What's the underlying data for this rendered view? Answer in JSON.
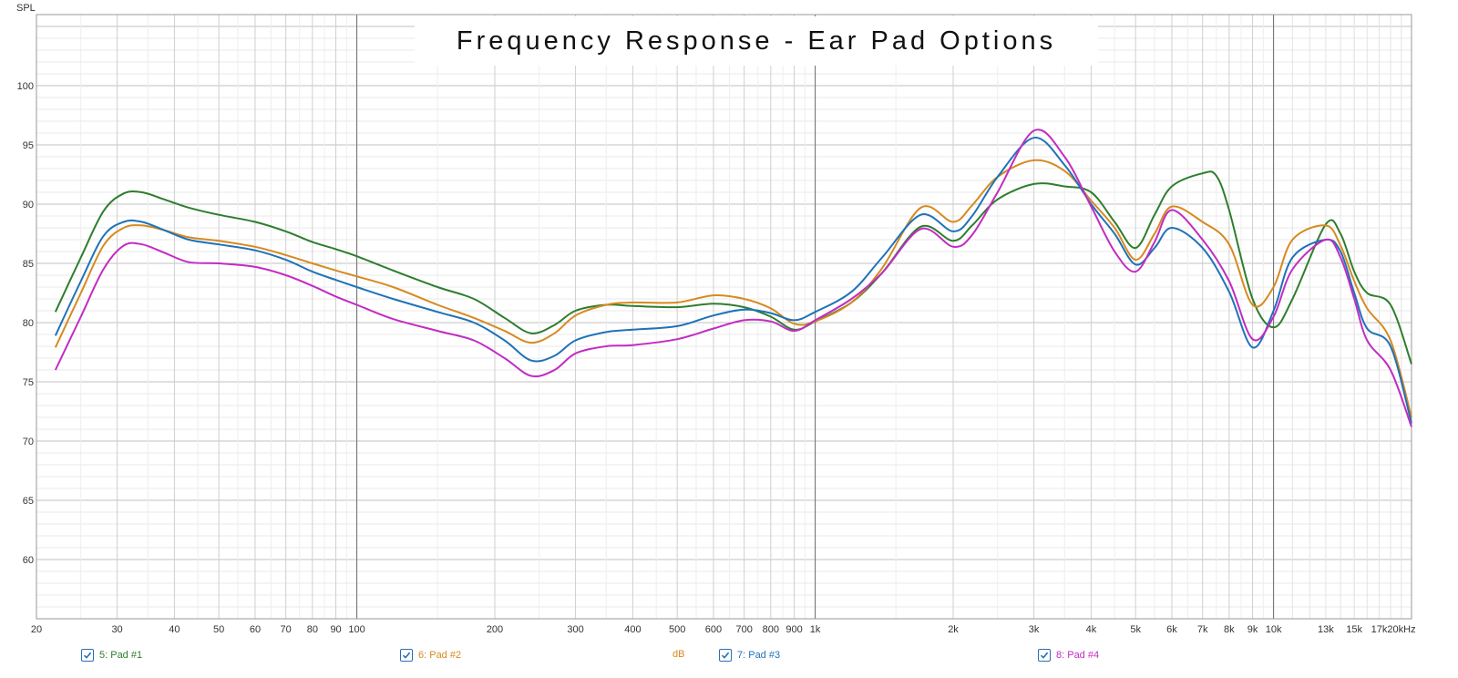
{
  "chart_data": {
    "type": "line",
    "title": "Frequency Response - Ear Pad Options",
    "ylabel": "SPL",
    "yunit": "dB",
    "xscale": "log",
    "xlim": [
      20,
      20000
    ],
    "ylim": [
      55,
      106
    ],
    "grid": true,
    "legend_position": "bottom",
    "y_ticks": [
      {
        "v": 100,
        "label": "100"
      },
      {
        "v": 95,
        "label": "95"
      },
      {
        "v": 90,
        "label": "90"
      },
      {
        "v": 85,
        "label": "85"
      },
      {
        "v": 80,
        "label": "80"
      },
      {
        "v": 75,
        "label": "75"
      },
      {
        "v": 70,
        "label": "70"
      },
      {
        "v": 65,
        "label": "65"
      },
      {
        "v": 60,
        "label": "60"
      }
    ],
    "x_ticks": [
      {
        "v": 20,
        "label": "20"
      },
      {
        "v": 30,
        "label": "30"
      },
      {
        "v": 40,
        "label": "40"
      },
      {
        "v": 50,
        "label": "50"
      },
      {
        "v": 60,
        "label": "60"
      },
      {
        "v": 70,
        "label": "70"
      },
      {
        "v": 80,
        "label": "80"
      },
      {
        "v": 90,
        "label": "90"
      },
      {
        "v": 100,
        "label": "100"
      },
      {
        "v": 200,
        "label": "200"
      },
      {
        "v": 300,
        "label": "300"
      },
      {
        "v": 400,
        "label": "400"
      },
      {
        "v": 500,
        "label": "500"
      },
      {
        "v": 600,
        "label": "600"
      },
      {
        "v": 700,
        "label": "700"
      },
      {
        "v": 800,
        "label": "800"
      },
      {
        "v": 900,
        "label": "900"
      },
      {
        "v": 1000,
        "label": "1k"
      },
      {
        "v": 2000,
        "label": "2k"
      },
      {
        "v": 3000,
        "label": "3k"
      },
      {
        "v": 4000,
        "label": "4k"
      },
      {
        "v": 5000,
        "label": "5k"
      },
      {
        "v": 6000,
        "label": "6k"
      },
      {
        "v": 7000,
        "label": "7k"
      },
      {
        "v": 8000,
        "label": "8k"
      },
      {
        "v": 9000,
        "label": "9k"
      },
      {
        "v": 10000,
        "label": "10k"
      },
      {
        "v": 13000,
        "label": "13k"
      },
      {
        "v": 15000,
        "label": "15k"
      },
      {
        "v": 17000,
        "label": "17k"
      },
      {
        "v": 20000,
        "label": "20kHz"
      }
    ],
    "series": [
      {
        "name": "5: Pad #1",
        "color": "#2e7d2e",
        "points": [
          [
            22,
            80.9
          ],
          [
            25,
            85.5
          ],
          [
            28,
            89.4
          ],
          [
            31,
            90.9
          ],
          [
            34,
            91.0
          ],
          [
            38,
            90.4
          ],
          [
            43,
            89.7
          ],
          [
            50,
            89.1
          ],
          [
            60,
            88.5
          ],
          [
            70,
            87.7
          ],
          [
            80,
            86.8
          ],
          [
            90,
            86.2
          ],
          [
            100,
            85.6
          ],
          [
            120,
            84.4
          ],
          [
            150,
            83.0
          ],
          [
            180,
            82.0
          ],
          [
            210,
            80.4
          ],
          [
            240,
            79.1
          ],
          [
            270,
            79.8
          ],
          [
            300,
            81.0
          ],
          [
            350,
            81.5
          ],
          [
            400,
            81.4
          ],
          [
            500,
            81.3
          ],
          [
            600,
            81.6
          ],
          [
            700,
            81.3
          ],
          [
            800,
            80.5
          ],
          [
            900,
            79.4
          ],
          [
            1000,
            80.1
          ],
          [
            1200,
            81.7
          ],
          [
            1400,
            84.2
          ],
          [
            1700,
            88.1
          ],
          [
            2000,
            86.9
          ],
          [
            2200,
            88.2
          ],
          [
            2500,
            90.4
          ],
          [
            3000,
            91.7
          ],
          [
            3500,
            91.5
          ],
          [
            4000,
            91.0
          ],
          [
            4500,
            88.5
          ],
          [
            5000,
            86.3
          ],
          [
            5500,
            89.1
          ],
          [
            6000,
            91.5
          ],
          [
            7000,
            92.6
          ],
          [
            7500,
            92.4
          ],
          [
            8000,
            89.5
          ],
          [
            9000,
            82.0
          ],
          [
            10000,
            79.6
          ],
          [
            11000,
            82.0
          ],
          [
            13000,
            88.3
          ],
          [
            14000,
            87.5
          ],
          [
            15000,
            84.3
          ],
          [
            16000,
            82.5
          ],
          [
            18000,
            81.5
          ],
          [
            20000,
            76.5
          ]
        ]
      },
      {
        "name": "6: Pad #2",
        "color": "#d68a1f",
        "points": [
          [
            22,
            77.9
          ],
          [
            25,
            82.5
          ],
          [
            28,
            86.5
          ],
          [
            31,
            88.0
          ],
          [
            34,
            88.2
          ],
          [
            38,
            87.8
          ],
          [
            43,
            87.2
          ],
          [
            50,
            86.9
          ],
          [
            60,
            86.4
          ],
          [
            70,
            85.7
          ],
          [
            80,
            85.0
          ],
          [
            90,
            84.4
          ],
          [
            100,
            83.9
          ],
          [
            120,
            83.0
          ],
          [
            150,
            81.5
          ],
          [
            180,
            80.4
          ],
          [
            210,
            79.3
          ],
          [
            240,
            78.3
          ],
          [
            270,
            79.1
          ],
          [
            300,
            80.6
          ],
          [
            350,
            81.5
          ],
          [
            400,
            81.7
          ],
          [
            500,
            81.7
          ],
          [
            600,
            82.3
          ],
          [
            700,
            82.0
          ],
          [
            800,
            81.2
          ],
          [
            900,
            79.9
          ],
          [
            1000,
            80.1
          ],
          [
            1200,
            81.7
          ],
          [
            1400,
            84.6
          ],
          [
            1700,
            89.7
          ],
          [
            2000,
            88.5
          ],
          [
            2200,
            89.9
          ],
          [
            2500,
            92.3
          ],
          [
            3000,
            93.7
          ],
          [
            3500,
            92.8
          ],
          [
            4000,
            90.3
          ],
          [
            4500,
            88.0
          ],
          [
            5000,
            85.3
          ],
          [
            5500,
            87.5
          ],
          [
            6000,
            89.8
          ],
          [
            7000,
            88.5
          ],
          [
            8000,
            86.6
          ],
          [
            9000,
            81.5
          ],
          [
            10000,
            83.0
          ],
          [
            11000,
            87.0
          ],
          [
            13000,
            88.2
          ],
          [
            14000,
            86.5
          ],
          [
            15000,
            83.5
          ],
          [
            16000,
            81.2
          ],
          [
            18000,
            78.5
          ],
          [
            20000,
            72.0
          ]
        ]
      },
      {
        "name": "7: Pad #3",
        "color": "#1f72b8",
        "points": [
          [
            22,
            78.9
          ],
          [
            25,
            83.5
          ],
          [
            28,
            87.3
          ],
          [
            31,
            88.5
          ],
          [
            34,
            88.5
          ],
          [
            38,
            87.8
          ],
          [
            43,
            87.0
          ],
          [
            50,
            86.6
          ],
          [
            60,
            86.1
          ],
          [
            70,
            85.3
          ],
          [
            80,
            84.3
          ],
          [
            90,
            83.6
          ],
          [
            100,
            83.0
          ],
          [
            120,
            82.0
          ],
          [
            150,
            80.9
          ],
          [
            180,
            80.0
          ],
          [
            210,
            78.5
          ],
          [
            240,
            76.8
          ],
          [
            270,
            77.2
          ],
          [
            300,
            78.5
          ],
          [
            350,
            79.2
          ],
          [
            400,
            79.4
          ],
          [
            500,
            79.7
          ],
          [
            600,
            80.6
          ],
          [
            700,
            81.1
          ],
          [
            800,
            80.8
          ],
          [
            900,
            80.2
          ],
          [
            1000,
            80.9
          ],
          [
            1200,
            82.6
          ],
          [
            1400,
            85.5
          ],
          [
            1700,
            89.1
          ],
          [
            2000,
            87.7
          ],
          [
            2200,
            89.0
          ],
          [
            2500,
            92.3
          ],
          [
            3000,
            95.6
          ],
          [
            3500,
            93.3
          ],
          [
            4000,
            90.0
          ],
          [
            4500,
            87.5
          ],
          [
            5000,
            84.9
          ],
          [
            5500,
            86.3
          ],
          [
            6000,
            88.0
          ],
          [
            7000,
            86.3
          ],
          [
            8000,
            82.6
          ],
          [
            9000,
            77.9
          ],
          [
            10000,
            81.0
          ],
          [
            11000,
            85.5
          ],
          [
            13000,
            87.0
          ],
          [
            14000,
            86.0
          ],
          [
            15000,
            82.5
          ],
          [
            16000,
            79.5
          ],
          [
            18000,
            78.0
          ],
          [
            20000,
            71.5
          ]
        ]
      },
      {
        "name": "8: Pad #4",
        "color": "#c22cc2",
        "points": [
          [
            22,
            76.0
          ],
          [
            25,
            80.5
          ],
          [
            28,
            84.5
          ],
          [
            31,
            86.5
          ],
          [
            34,
            86.6
          ],
          [
            38,
            85.9
          ],
          [
            43,
            85.1
          ],
          [
            50,
            85.0
          ],
          [
            60,
            84.7
          ],
          [
            70,
            84.0
          ],
          [
            80,
            83.1
          ],
          [
            90,
            82.2
          ],
          [
            100,
            81.5
          ],
          [
            120,
            80.3
          ],
          [
            150,
            79.3
          ],
          [
            180,
            78.5
          ],
          [
            210,
            77.0
          ],
          [
            240,
            75.5
          ],
          [
            270,
            76.0
          ],
          [
            300,
            77.4
          ],
          [
            350,
            78.0
          ],
          [
            400,
            78.1
          ],
          [
            500,
            78.6
          ],
          [
            600,
            79.5
          ],
          [
            700,
            80.2
          ],
          [
            800,
            80.1
          ],
          [
            900,
            79.3
          ],
          [
            1000,
            80.2
          ],
          [
            1200,
            82.0
          ],
          [
            1400,
            84.2
          ],
          [
            1700,
            87.9
          ],
          [
            2000,
            86.4
          ],
          [
            2200,
            87.4
          ],
          [
            2500,
            91.0
          ],
          [
            3000,
            96.2
          ],
          [
            3500,
            94.0
          ],
          [
            4000,
            89.8
          ],
          [
            4500,
            86.0
          ],
          [
            5000,
            84.3
          ],
          [
            5500,
            86.8
          ],
          [
            6000,
            89.5
          ],
          [
            7000,
            87.0
          ],
          [
            8000,
            83.5
          ],
          [
            9000,
            78.6
          ],
          [
            10000,
            80.5
          ],
          [
            11000,
            84.5
          ],
          [
            13000,
            87.0
          ],
          [
            14000,
            85.5
          ],
          [
            15000,
            82.0
          ],
          [
            16000,
            78.5
          ],
          [
            18000,
            76.0
          ],
          [
            20000,
            71.2
          ]
        ]
      }
    ]
  },
  "legend": [
    {
      "label": "5: Pad #1",
      "color": "#2e7d2e"
    },
    {
      "label": "6: Pad #2",
      "color": "#d68a1f"
    },
    {
      "label": "7: Pad #3",
      "color": "#1f72b8"
    },
    {
      "label": "8: Pad #4",
      "color": "#c22cc2"
    }
  ],
  "unit_label": "dB",
  "unit_color": "#d68a1f"
}
